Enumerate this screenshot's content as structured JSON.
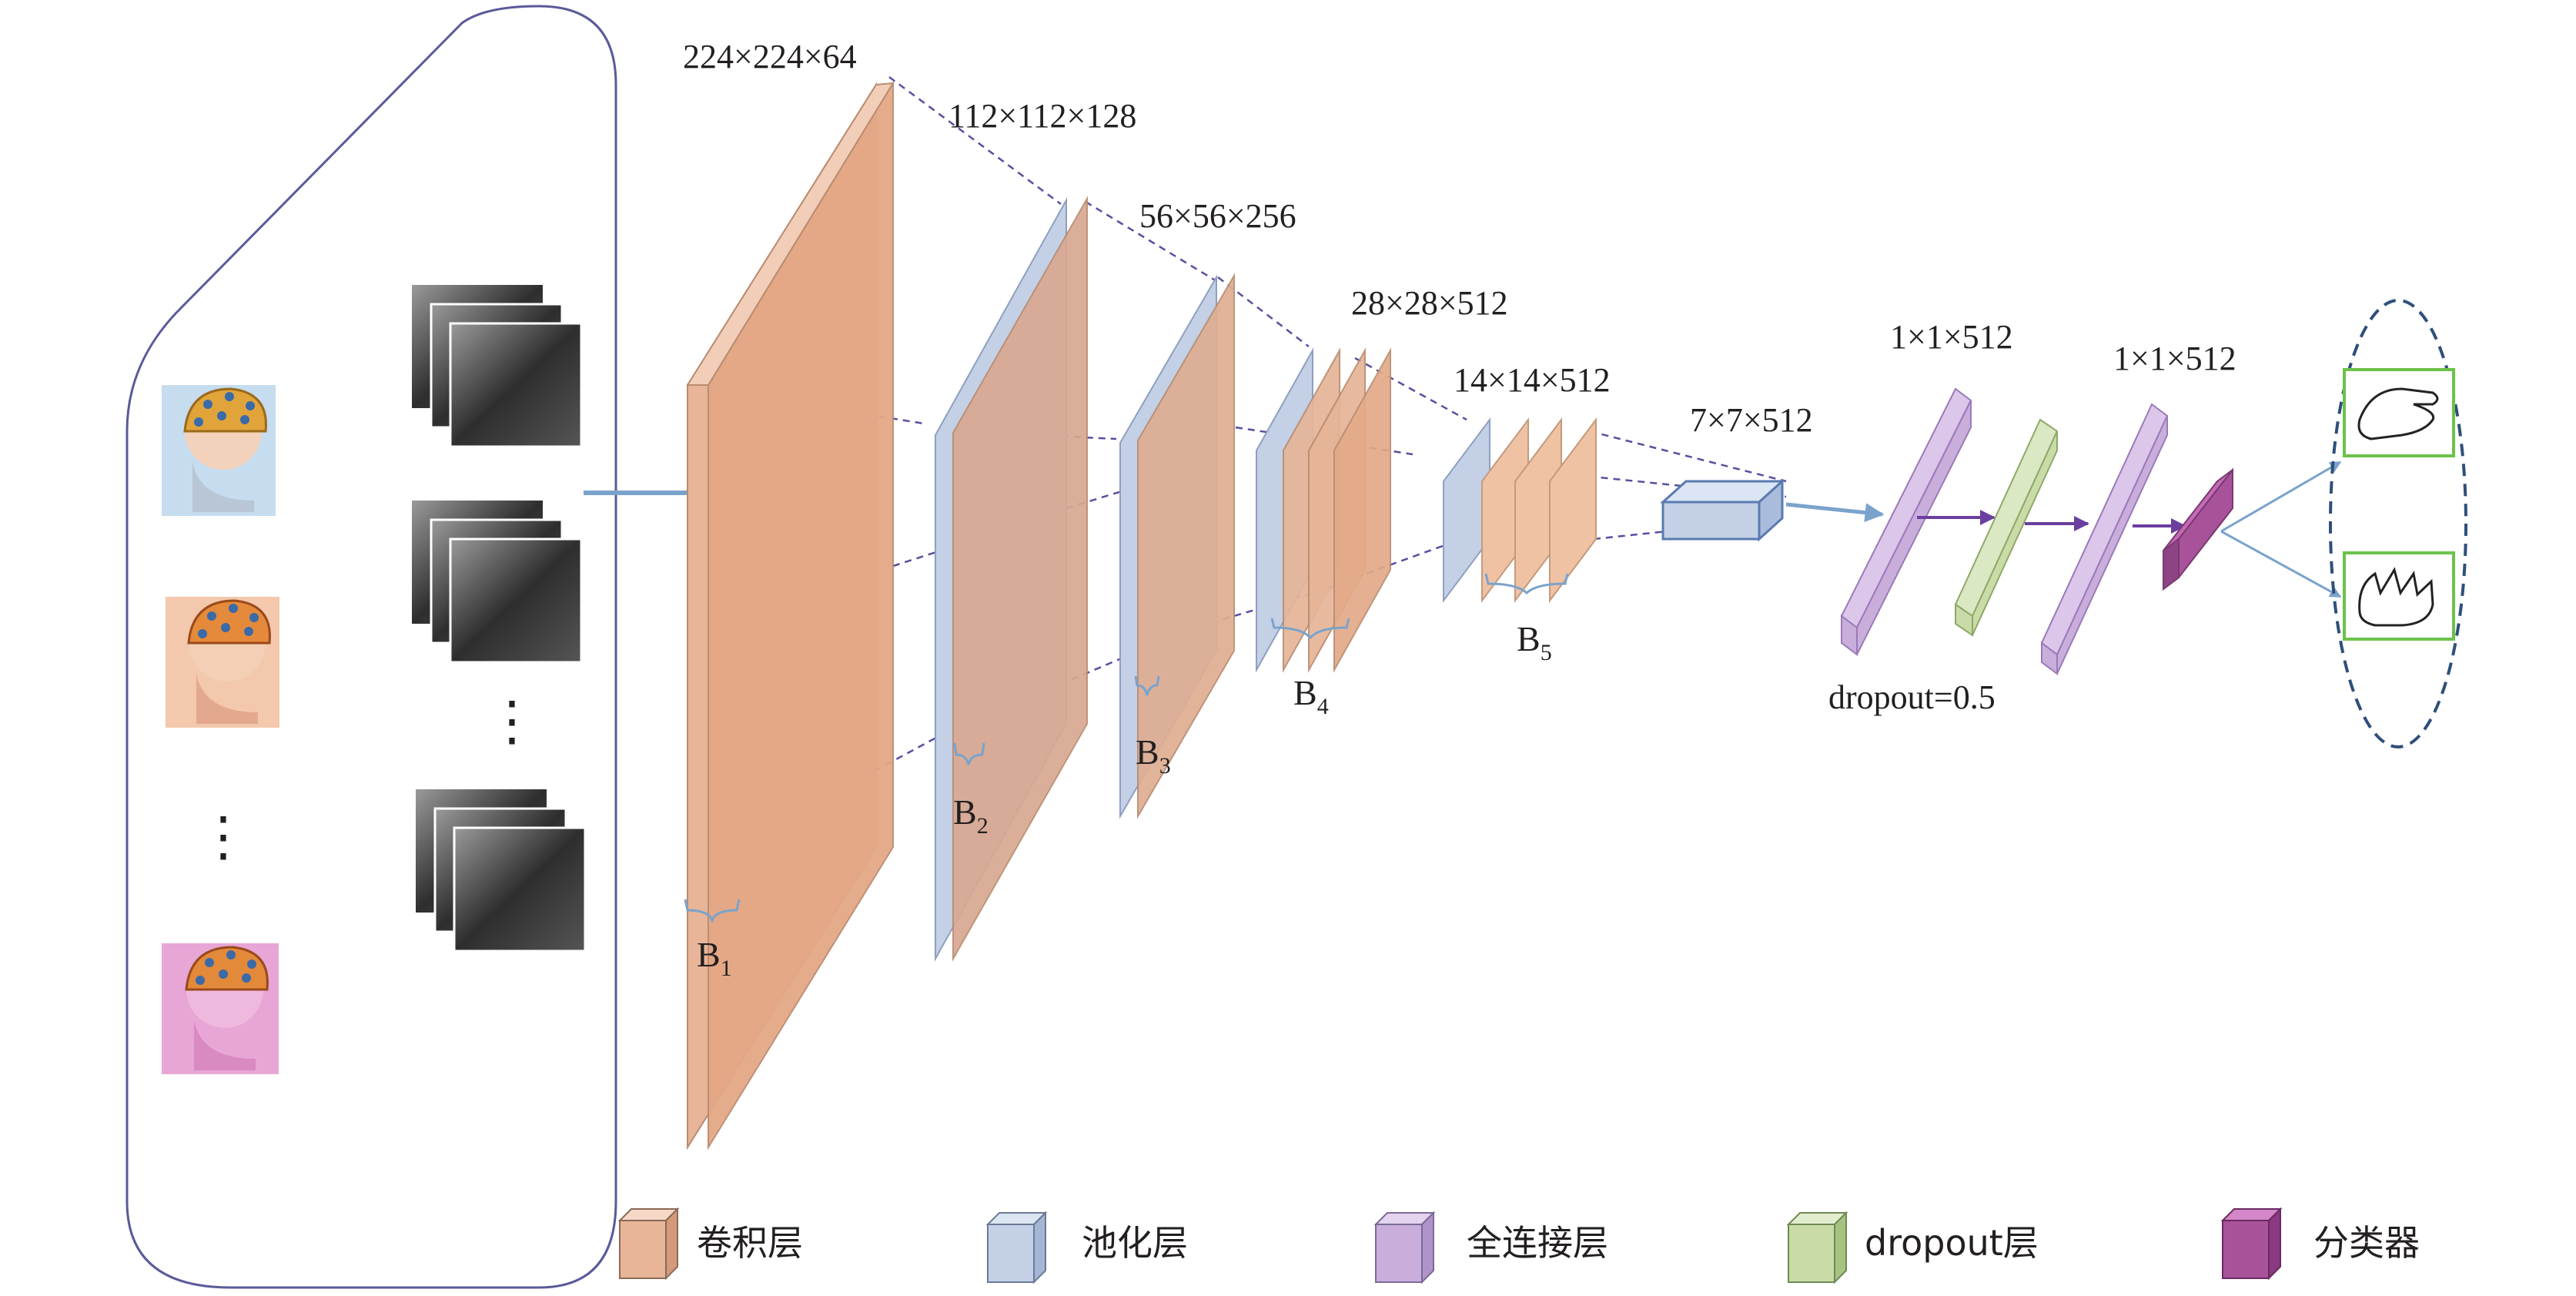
{
  "layers": {
    "b1": "224×224×64",
    "b2": "112×112×128",
    "b3": "56×56×256",
    "b4": "28×28×512",
    "b5": "14×14×512",
    "pool5": "7×7×512",
    "fc1": "1×1×512",
    "fc2": "1×1×512"
  },
  "blocks": {
    "b1": {
      "letter": "B",
      "sub": "1"
    },
    "b2": {
      "letter": "B",
      "sub": "2"
    },
    "b3": {
      "letter": "B",
      "sub": "3"
    },
    "b4": {
      "letter": "B",
      "sub": "4"
    },
    "b5": {
      "letter": "B",
      "sub": "5"
    }
  },
  "dropout": "dropout=0.5",
  "ellipsis": "⋮",
  "legend": {
    "conv": "卷积层",
    "pool": "池化层",
    "fc": "全连接层",
    "dropout": "dropout层",
    "classifier": "分类器"
  },
  "colors": {
    "conv": "#e8b598",
    "pool": "#c3d0e6",
    "fc": "#c9aedc",
    "dropout": "#c9dca8",
    "classifier": "#a8529a",
    "arrow": "#7aa3cc",
    "dash": "#5a4ea0"
  }
}
